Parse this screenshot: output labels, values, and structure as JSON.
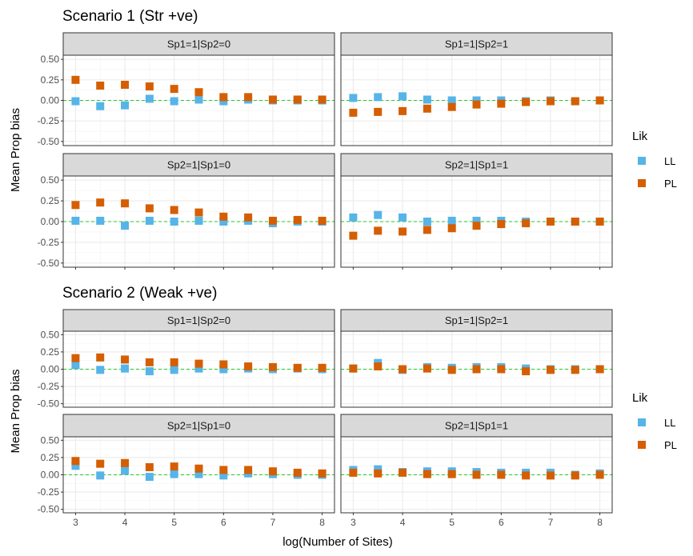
{
  "colors": {
    "LL": "#56B4E9",
    "PL": "#D55E00",
    "zero_line": "#22cc22",
    "strip_bg": "#d9d9d9"
  },
  "chart_data": [
    {
      "title": "Scenario 1 (Str +ve)",
      "ylabel": "Mean Prop bias",
      "legend": {
        "title": "Lik",
        "entries": [
          "LL",
          "PL"
        ],
        "position": "right"
      },
      "panels": [
        {
          "strip": "Sp1=1|Sp2=0",
          "series": [
            {
              "name": "LL",
              "values": [
                -0.01,
                -0.07,
                -0.06,
                0.02,
                -0.01,
                0.01,
                -0.01,
                0.01,
                0.0,
                0.0,
                0.0
              ]
            },
            {
              "name": "PL",
              "values": [
                0.25,
                0.18,
                0.19,
                0.17,
                0.14,
                0.1,
                0.04,
                0.04,
                0.01,
                0.01,
                0.01
              ]
            }
          ]
        },
        {
          "strip": "Sp1=1|Sp2=1",
          "series": [
            {
              "name": "LL",
              "values": [
                0.03,
                0.04,
                0.05,
                0.01,
                0.0,
                0.0,
                0.0,
                -0.01,
                0.0,
                -0.01,
                0.0
              ]
            },
            {
              "name": "PL",
              "values": [
                -0.15,
                -0.14,
                -0.13,
                -0.1,
                -0.08,
                -0.05,
                -0.04,
                -0.02,
                -0.01,
                -0.01,
                0.0
              ]
            }
          ]
        },
        {
          "strip": "Sp2=1|Sp1=0",
          "series": [
            {
              "name": "LL",
              "values": [
                0.01,
                0.01,
                -0.05,
                0.01,
                0.0,
                0.01,
                0.0,
                0.01,
                -0.02,
                0.0,
                0.0
              ]
            },
            {
              "name": "PL",
              "values": [
                0.2,
                0.23,
                0.22,
                0.16,
                0.14,
                0.11,
                0.06,
                0.05,
                0.01,
                0.02,
                0.01
              ]
            }
          ]
        },
        {
          "strip": "Sp2=1|Sp1=1",
          "series": [
            {
              "name": "LL",
              "values": [
                0.05,
                0.08,
                0.05,
                0.0,
                0.01,
                0.01,
                0.01,
                0.0,
                0.0,
                0.0,
                0.0
              ]
            },
            {
              "name": "PL",
              "values": [
                -0.17,
                -0.11,
                -0.12,
                -0.1,
                -0.08,
                -0.05,
                -0.03,
                -0.02,
                0.0,
                0.0,
                0.0
              ]
            }
          ]
        }
      ]
    },
    {
      "title": "Scenario 2 (Weak +ve)",
      "ylabel": "Mean Prop bias",
      "legend": {
        "title": "Lik",
        "entries": [
          "LL",
          "PL"
        ],
        "position": "right"
      },
      "panels": [
        {
          "strip": "Sp1=1|Sp2=0",
          "series": [
            {
              "name": "LL",
              "values": [
                0.06,
                -0.01,
                0.01,
                -0.03,
                -0.01,
                0.01,
                0.0,
                0.01,
                0.0,
                0.01,
                0.0
              ]
            },
            {
              "name": "PL",
              "values": [
                0.16,
                0.17,
                0.14,
                0.1,
                0.1,
                0.08,
                0.07,
                0.04,
                0.03,
                0.02,
                0.02
              ]
            }
          ]
        },
        {
          "strip": "Sp1=1|Sp2=1",
          "series": [
            {
              "name": "LL",
              "values": [
                0.01,
                0.09,
                -0.01,
                0.03,
                0.02,
                0.03,
                0.03,
                0.01,
                0.0,
                0.0,
                0.0
              ]
            },
            {
              "name": "PL",
              "values": [
                0.01,
                0.04,
                0.0,
                0.01,
                -0.01,
                0.0,
                0.0,
                -0.03,
                -0.01,
                -0.01,
                0.0
              ]
            }
          ]
        },
        {
          "strip": "Sp2=1|Sp1=0",
          "series": [
            {
              "name": "LL",
              "values": [
                0.13,
                -0.01,
                0.06,
                -0.03,
                0.01,
                0.01,
                -0.01,
                0.02,
                0.01,
                0.0,
                0.0
              ]
            },
            {
              "name": "PL",
              "values": [
                0.2,
                0.16,
                0.17,
                0.11,
                0.12,
                0.09,
                0.07,
                0.07,
                0.05,
                0.03,
                0.02
              ]
            }
          ]
        },
        {
          "strip": "Sp2=1|Sp1=1",
          "series": [
            {
              "name": "LL",
              "values": [
                0.07,
                0.08,
                0.04,
                0.05,
                0.05,
                0.04,
                0.03,
                0.03,
                0.03,
                0.0,
                0.02
              ]
            },
            {
              "name": "PL",
              "values": [
                0.03,
                0.02,
                0.03,
                0.01,
                0.01,
                0.0,
                0.0,
                -0.01,
                -0.01,
                -0.01,
                0.0
              ]
            }
          ]
        }
      ]
    }
  ],
  "shared": {
    "type": "scatter",
    "x": [
      3,
      3.5,
      4,
      4.5,
      5,
      5.5,
      6,
      6.5,
      7,
      7.5,
      8
    ],
    "xlabel": "log(Number of Sites)",
    "x_ticks": [
      "3",
      "4",
      "5",
      "6",
      "7",
      "8"
    ],
    "y_ticks": [
      "-0.50",
      "-0.25",
      "0.00",
      "0.25",
      "0.50"
    ],
    "xlim": [
      2.75,
      8.25
    ],
    "ylim": [
      -0.55,
      0.55
    ],
    "grid": true
  }
}
